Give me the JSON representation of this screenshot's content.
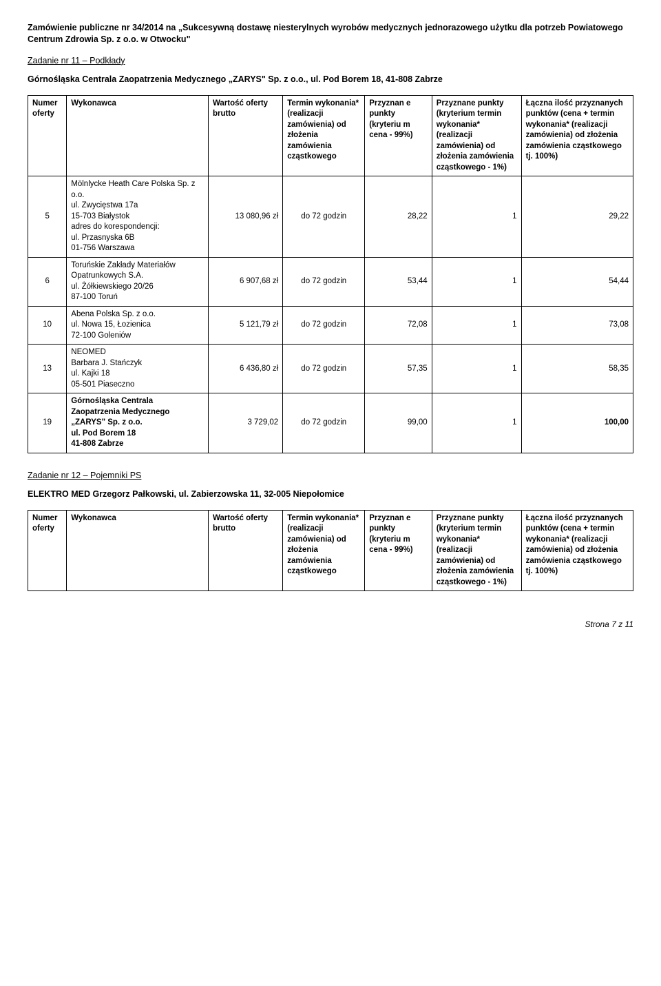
{
  "header_line1": "Zamówienie publiczne nr 34/2014 na „Sukcesywną dostawę niesterylnych wyrobów medycznych jednorazowego użytku dla potrzeb Powiatowego Centrum Zdrowia Sp. z o.o. w Otwocku\"",
  "zadanie11": {
    "title": "Zadanie nr 11 – Podkłady",
    "supplier": "Górnośląska Centrala Zaopatrzenia Medycznego „ZARYS\" Sp. z o.o., ul. Pod Borem 18, 41-808 Zabrze",
    "headers": {
      "numer": "Numer oferty",
      "wykonawca": "Wykonawca",
      "wartosc": "Wartość oferty brutto",
      "termin": "Termin wykonania* (realizacji zamówienia) od złożenia zamówienia cząstkowego",
      "przyznan": "Przyznan e punkty (kryteriu m cena - 99%)",
      "przyznane": "Przyznane punkty (kryterium termin wykonania* (realizacji zamówienia) od złożenia zamówienia cząstkowego - 1%)",
      "laczna": "Łączna ilość przyznanych punktów (cena + termin wykonania* (realizacji zamówienia) od złożenia zamówienia cząstkowego tj. 100%)"
    },
    "rows": [
      {
        "num": "5",
        "wyk": "Mölnlycke Heath Care Polska Sp. z o.o.\nul. Zwycięstwa 17a\n15-703 Białystok\nadres do korespondencji:\nul. Przasnyska 6B\n01-756 Warszawa",
        "wart": "13 080,96 zł",
        "term": "do 72 godzin",
        "p1": "28,22",
        "p2": "1",
        "total": "29,22"
      },
      {
        "num": "6",
        "wyk": "Toruńskie Zakłady Materiałów Opatrunkowych S.A.\nul. Żółkiewskiego 20/26\n87-100 Toruń",
        "wart": "6 907,68 zł",
        "term": "do 72 godzin",
        "p1": "53,44",
        "p2": "1",
        "total": "54,44"
      },
      {
        "num": "10",
        "wyk": "Abena Polska Sp. z o.o.\nul. Nowa 15, Łozienica\n72-100 Goleniów",
        "wart": "5 121,79 zł",
        "term": "do 72 godzin",
        "p1": "72,08",
        "p2": "1",
        "total": "73,08"
      },
      {
        "num": "13",
        "wyk": "NEOMED\nBarbara J. Stańczyk\nul. Kajki 18\n05-501 Piaseczno",
        "wart": "6 436,80 zł",
        "term": "do 72 godzin",
        "p1": "57,35",
        "p2": "1",
        "total": "58,35"
      },
      {
        "num": "19",
        "wyk_bold": true,
        "wyk": "Górnośląska Centrala Zaopatrzenia Medycznego „ZARYS\" Sp. z o.o.\nul. Pod Borem 18\n41-808 Zabrze",
        "wart": "3 729,02",
        "term": "do 72 godzin",
        "p1": "99,00",
        "p2": "1",
        "total": "100,00",
        "total_bold": true
      }
    ]
  },
  "zadanie12": {
    "title": "Zadanie nr 12 – Pojemniki PS",
    "supplier": "ELEKTRO MED Grzegorz Pałkowski, ul. Zabierzowska 11, 32-005 Niepołomice",
    "headers": {
      "numer": "Numer oferty",
      "wykonawca": "Wykonawca",
      "wartosc": "Wartość oferty brutto",
      "termin": "Termin wykonania* (realizacji zamówienia) od złożenia zamówienia cząstkowego",
      "przyznan": "Przyznan e punkty (kryteriu m cena - 99%)",
      "przyznane": "Przyznane punkty (kryterium termin wykonania* (realizacji zamówienia) od złożenia zamówienia cząstkowego - 1%)",
      "laczna": "Łączna ilość przyznanych punktów (cena + termin wykonania* (realizacji zamówienia) od złożenia zamówienia cząstkowego tj. 100%)"
    }
  },
  "footer": "Strona 7 z 11"
}
